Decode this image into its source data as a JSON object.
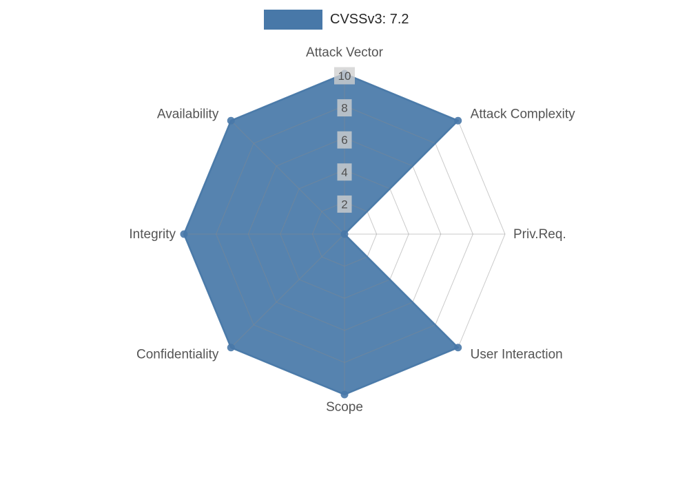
{
  "legend": {
    "label": "CVSSv3: 7.2",
    "swatch_color": "#4878a8"
  },
  "chart_data": {
    "type": "radar",
    "title": "",
    "categories": [
      "Attack Vector",
      "Attack Complexity",
      "Priv.Req.",
      "User Interaction",
      "Scope",
      "Confidentiality",
      "Integrity",
      "Availability"
    ],
    "series": [
      {
        "name": "CVSSv3: 7.2",
        "color": "#4878a8",
        "fill_opacity": 0.92,
        "values": [
          10,
          10,
          0,
          10,
          10,
          10,
          10,
          10
        ]
      }
    ],
    "radial_axis": {
      "ticks": [
        2,
        4,
        6,
        8,
        10
      ],
      "range": [
        0,
        10
      ],
      "tick_label_bg": "#d0d0d0",
      "tick_label_color": "#4f4f4f"
    },
    "grid": true,
    "grid_color": "#8a8a8a",
    "category_label_color": "#545454",
    "legend_position": "top-center"
  }
}
